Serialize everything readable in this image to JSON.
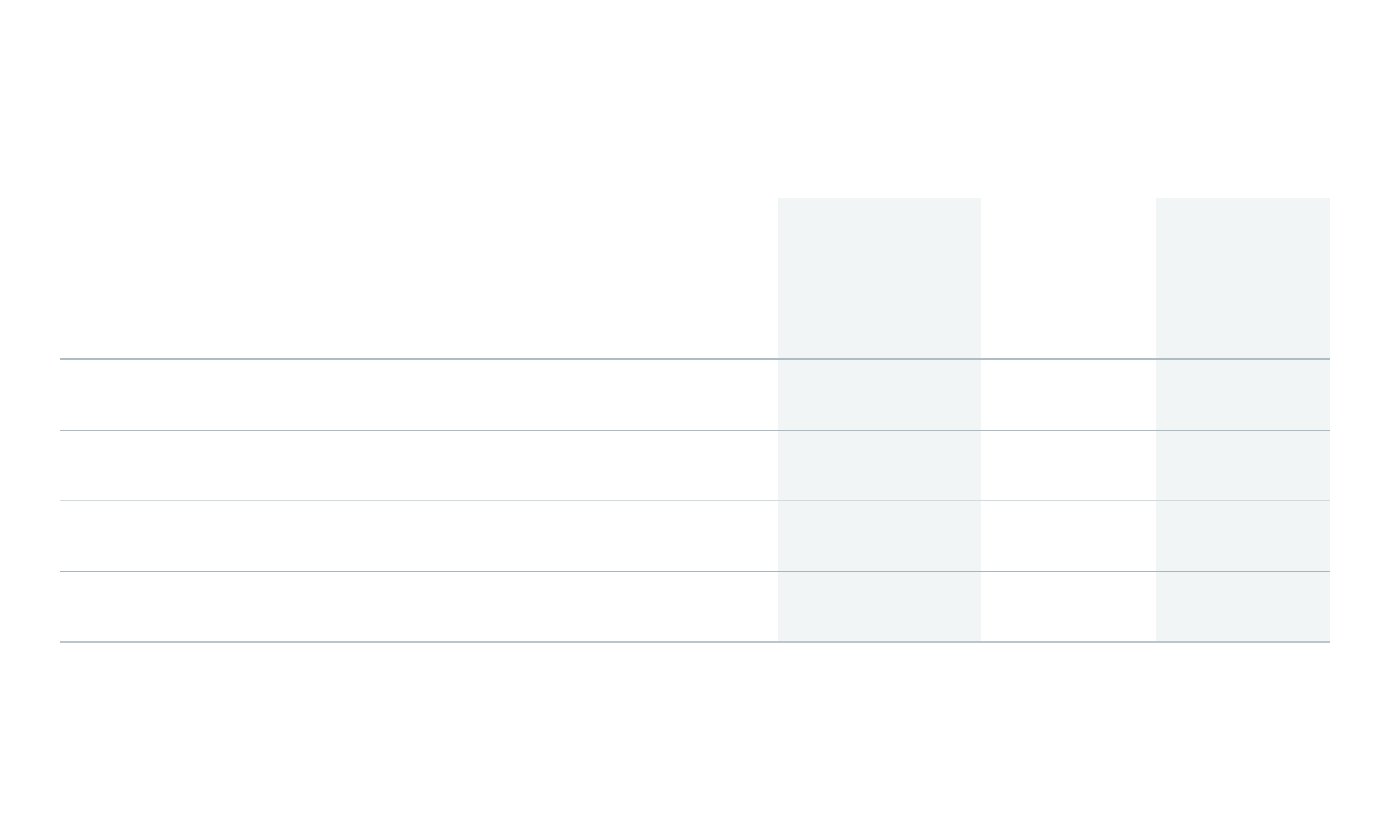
{
  "colors": {
    "highlight_column": "#f1f5f6",
    "rule": "#a9bac3",
    "rule_light": "#cfdbdf",
    "rule_heavy": "#aebdc5",
    "background": "#ffffff"
  },
  "table": {
    "headers": [
      "",
      "",
      "",
      ""
    ],
    "rows": [
      [
        "",
        "",
        "",
        ""
      ],
      [
        "",
        "",
        "",
        ""
      ],
      [
        "",
        "",
        "",
        ""
      ],
      [
        "",
        "",
        "",
        ""
      ]
    ]
  }
}
